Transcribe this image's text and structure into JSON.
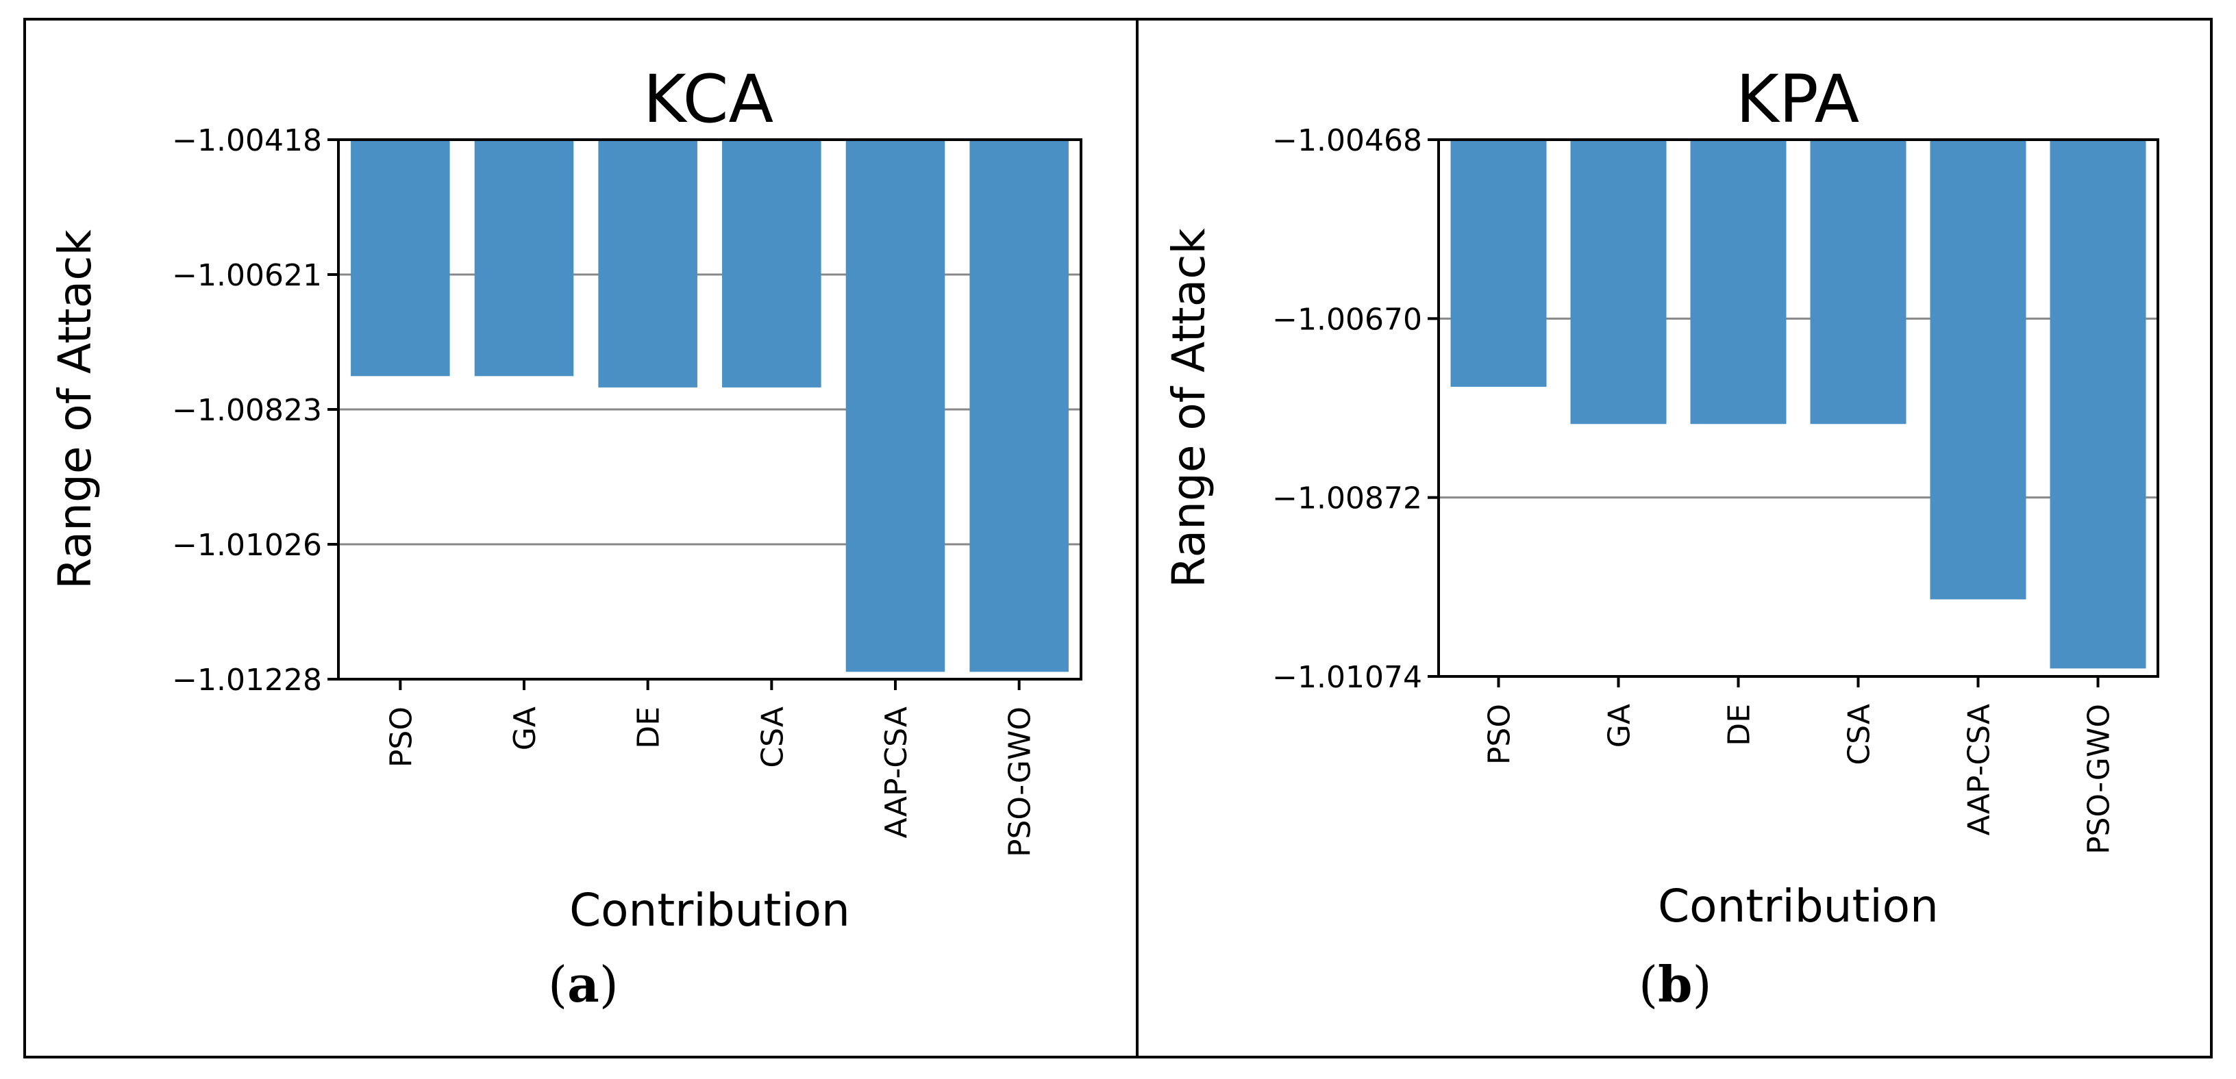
{
  "chart_data": [
    {
      "type": "bar",
      "title": "KCA",
      "xlabel": "Contribution",
      "ylabel": "Range of Attack",
      "categories": [
        "PSO",
        "GA",
        "DE",
        "CSA",
        "AAP-CSA",
        "PSO-GWO"
      ],
      "values": [
        -1.00773,
        -1.00773,
        -1.0079,
        -1.0079,
        -1.01217,
        -1.01217
      ],
      "yticks": [
        "−1.00418",
        "−1.00621",
        "−1.00823",
        "−1.01026",
        "−1.01228"
      ],
      "ylim": [
        -1.00418,
        -1.01228
      ],
      "grid": "horizontal",
      "bar_color": "#4a90c4",
      "panel_label": "a"
    },
    {
      "type": "bar",
      "title": "KPA",
      "xlabel": "Contribution",
      "ylabel": "Range of Attack",
      "categories": [
        "PSO",
        "GA",
        "DE",
        "CSA",
        "AAP-CSA",
        "PSO-GWO"
      ],
      "values": [
        -1.00747,
        -1.00789,
        -1.00789,
        -1.00789,
        -1.00987,
        -1.01065
      ],
      "yticks": [
        "−1.00468",
        "−1.00670",
        "−1.00872",
        "−1.01074"
      ],
      "ylim": [
        -1.00468,
        -1.01074
      ],
      "grid": "horizontal",
      "bar_color": "#4a90c4",
      "panel_label": "b"
    }
  ]
}
